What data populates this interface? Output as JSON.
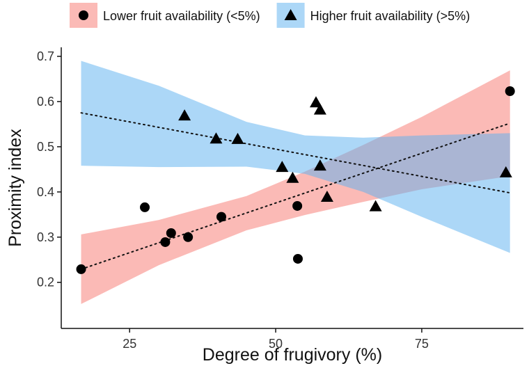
{
  "chart_data": {
    "type": "scatter",
    "x_label": "Degree of frugivory (%)",
    "y_label": "Proximity index",
    "xlim": [
      13.3,
      92.4
    ],
    "ylim": [
      0.098,
      0.72
    ],
    "xticks": [
      25,
      50,
      75
    ],
    "yticks": [
      0.2,
      0.3,
      0.4,
      0.5,
      0.6,
      0.7
    ],
    "grid": false,
    "legend": "top",
    "band_opacity": 0.5,
    "series": [
      {
        "name": "Lower fruit availability (<5%)",
        "marker": "circle",
        "color": "#f8766d",
        "mark_color": "#000000",
        "x": [
          16.7,
          27.6,
          32.1,
          31.1,
          35.0,
          40.7,
          53.7,
          53.8,
          90.1
        ],
        "values": [
          0.229,
          0.366,
          0.309,
          0.289,
          0.3,
          0.345,
          0.369,
          0.252,
          0.623
        ],
        "trend_x": [
          16.7,
          90.1
        ],
        "trend_values": [
          0.229,
          0.552
        ],
        "band_x": [
          16.7,
          30,
          45,
          55,
          65,
          75,
          90.1
        ],
        "band_lower": [
          0.152,
          0.238,
          0.315,
          0.349,
          0.378,
          0.406,
          0.435
        ],
        "band_upper": [
          0.306,
          0.338,
          0.391,
          0.445,
          0.504,
          0.566,
          0.669
        ]
      },
      {
        "name": "Higher fruit availability (>5%)",
        "marker": "triangle",
        "color": "#5ab0f0",
        "mark_color": "#000000",
        "x": [
          34.4,
          39.8,
          43.5,
          51.1,
          52.9,
          56.9,
          57.6,
          57.6,
          58.8,
          67.1,
          89.4
        ],
        "values": [
          0.569,
          0.518,
          0.517,
          0.455,
          0.431,
          0.598,
          0.582,
          0.458,
          0.389,
          0.368,
          0.443
        ],
        "trend_x": [
          16.7,
          90.1
        ],
        "trend_values": [
          0.575,
          0.398
        ],
        "band_x": [
          16.7,
          30,
          45,
          55,
          65,
          75,
          90.1
        ],
        "band_lower": [
          0.458,
          0.455,
          0.456,
          0.44,
          0.4,
          0.345,
          0.265
        ],
        "band_upper": [
          0.69,
          0.635,
          0.555,
          0.525,
          0.52,
          0.525,
          0.53
        ]
      }
    ]
  }
}
